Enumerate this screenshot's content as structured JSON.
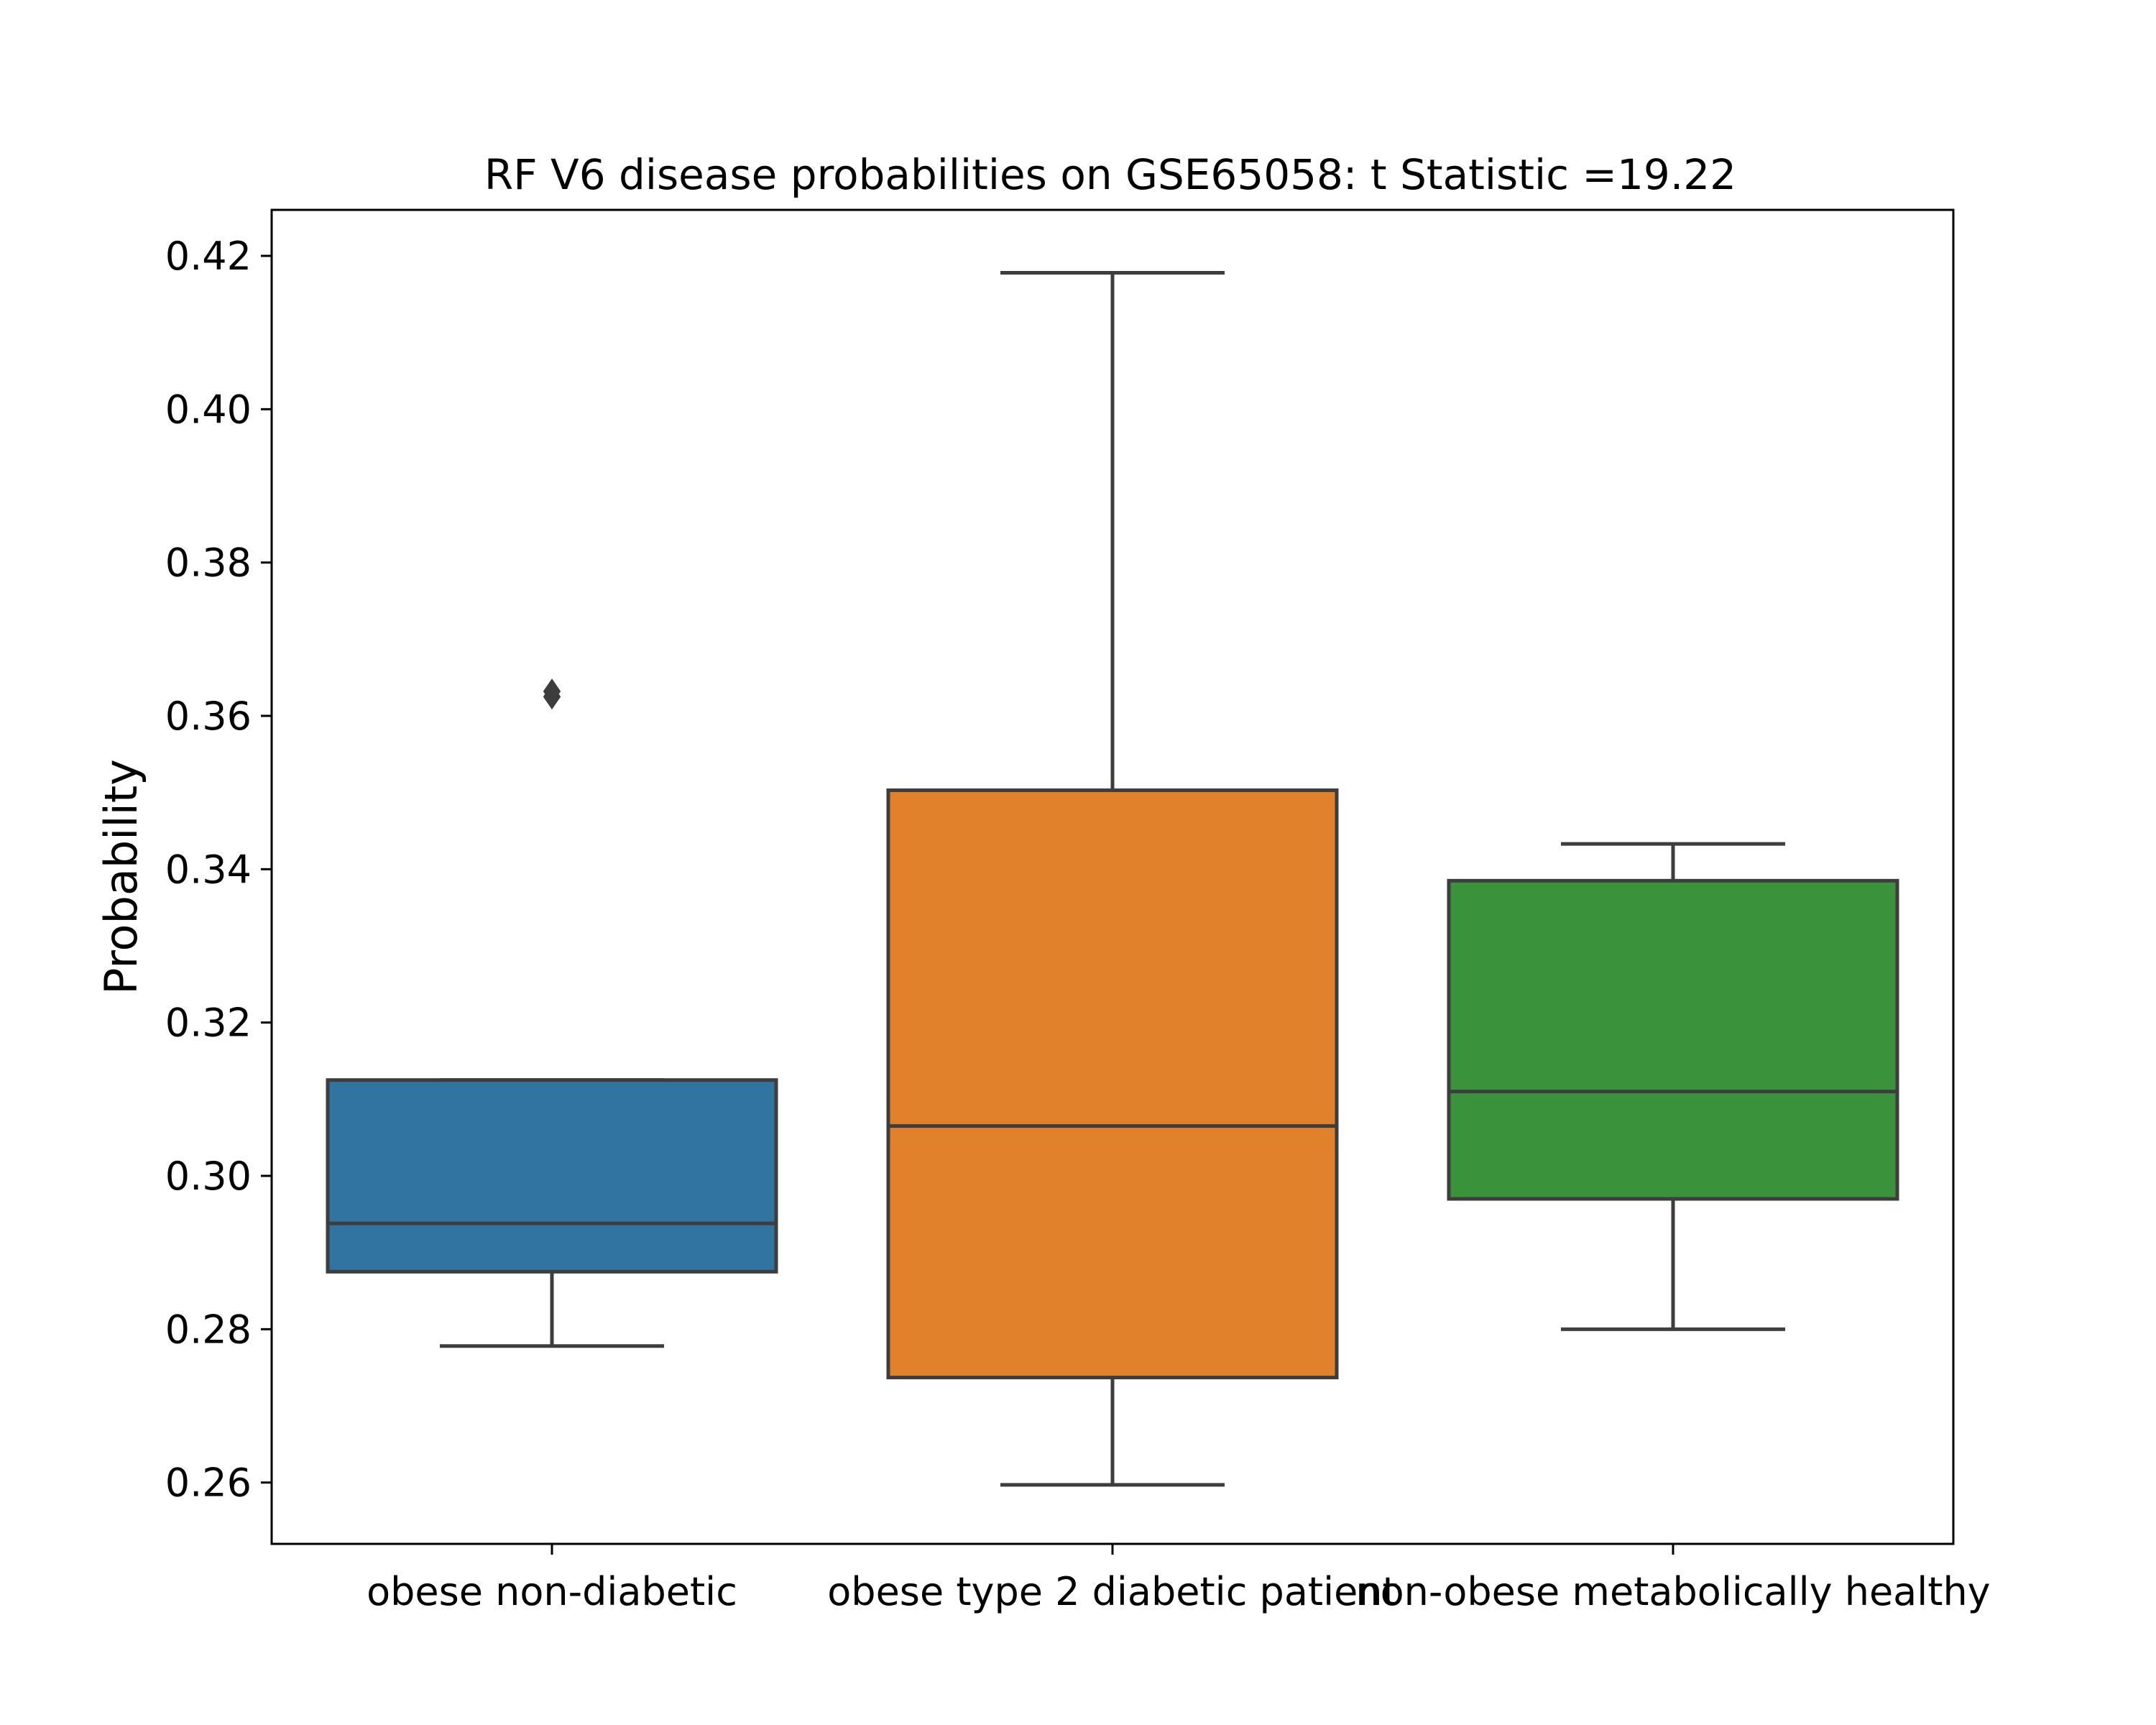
{
  "chart_data": {
    "type": "box",
    "title": "RF V6 disease probabilities on GSE65058: t Statistic =19.22",
    "xlabel": "",
    "ylabel": "Probability",
    "ylim": [
      0.252,
      0.426
    ],
    "yticks": [
      "0.26",
      "0.28",
      "0.30",
      "0.32",
      "0.34",
      "0.36",
      "0.38",
      "0.40",
      "0.42"
    ],
    "grid": false,
    "legend": "none",
    "categories": [
      "obese non-diabetic",
      "obese type 2 diabetic patient",
      "non-obese metabolically healthy"
    ],
    "boxes": [
      {
        "category": "obese non-diabetic",
        "whisker_low": 0.2778,
        "q1": 0.2875,
        "median": 0.2938,
        "q3": 0.3125,
        "whisker_high": 0.3125,
        "outliers": [
          0.3632,
          0.3625
        ],
        "color": "#3274a1"
      },
      {
        "category": "obese type 2 diabetic patient",
        "whisker_low": 0.2597,
        "q1": 0.2737,
        "median": 0.3065,
        "q3": 0.3503,
        "whisker_high": 0.4178,
        "outliers": [],
        "color": "#e1812c"
      },
      {
        "category": "non-obese metabolically healthy",
        "whisker_low": 0.28,
        "q1": 0.297,
        "median": 0.311,
        "q3": 0.3385,
        "whisker_high": 0.3433,
        "outliers": [],
        "color": "#3a923a"
      }
    ],
    "line_color": "#3d3d3d"
  }
}
